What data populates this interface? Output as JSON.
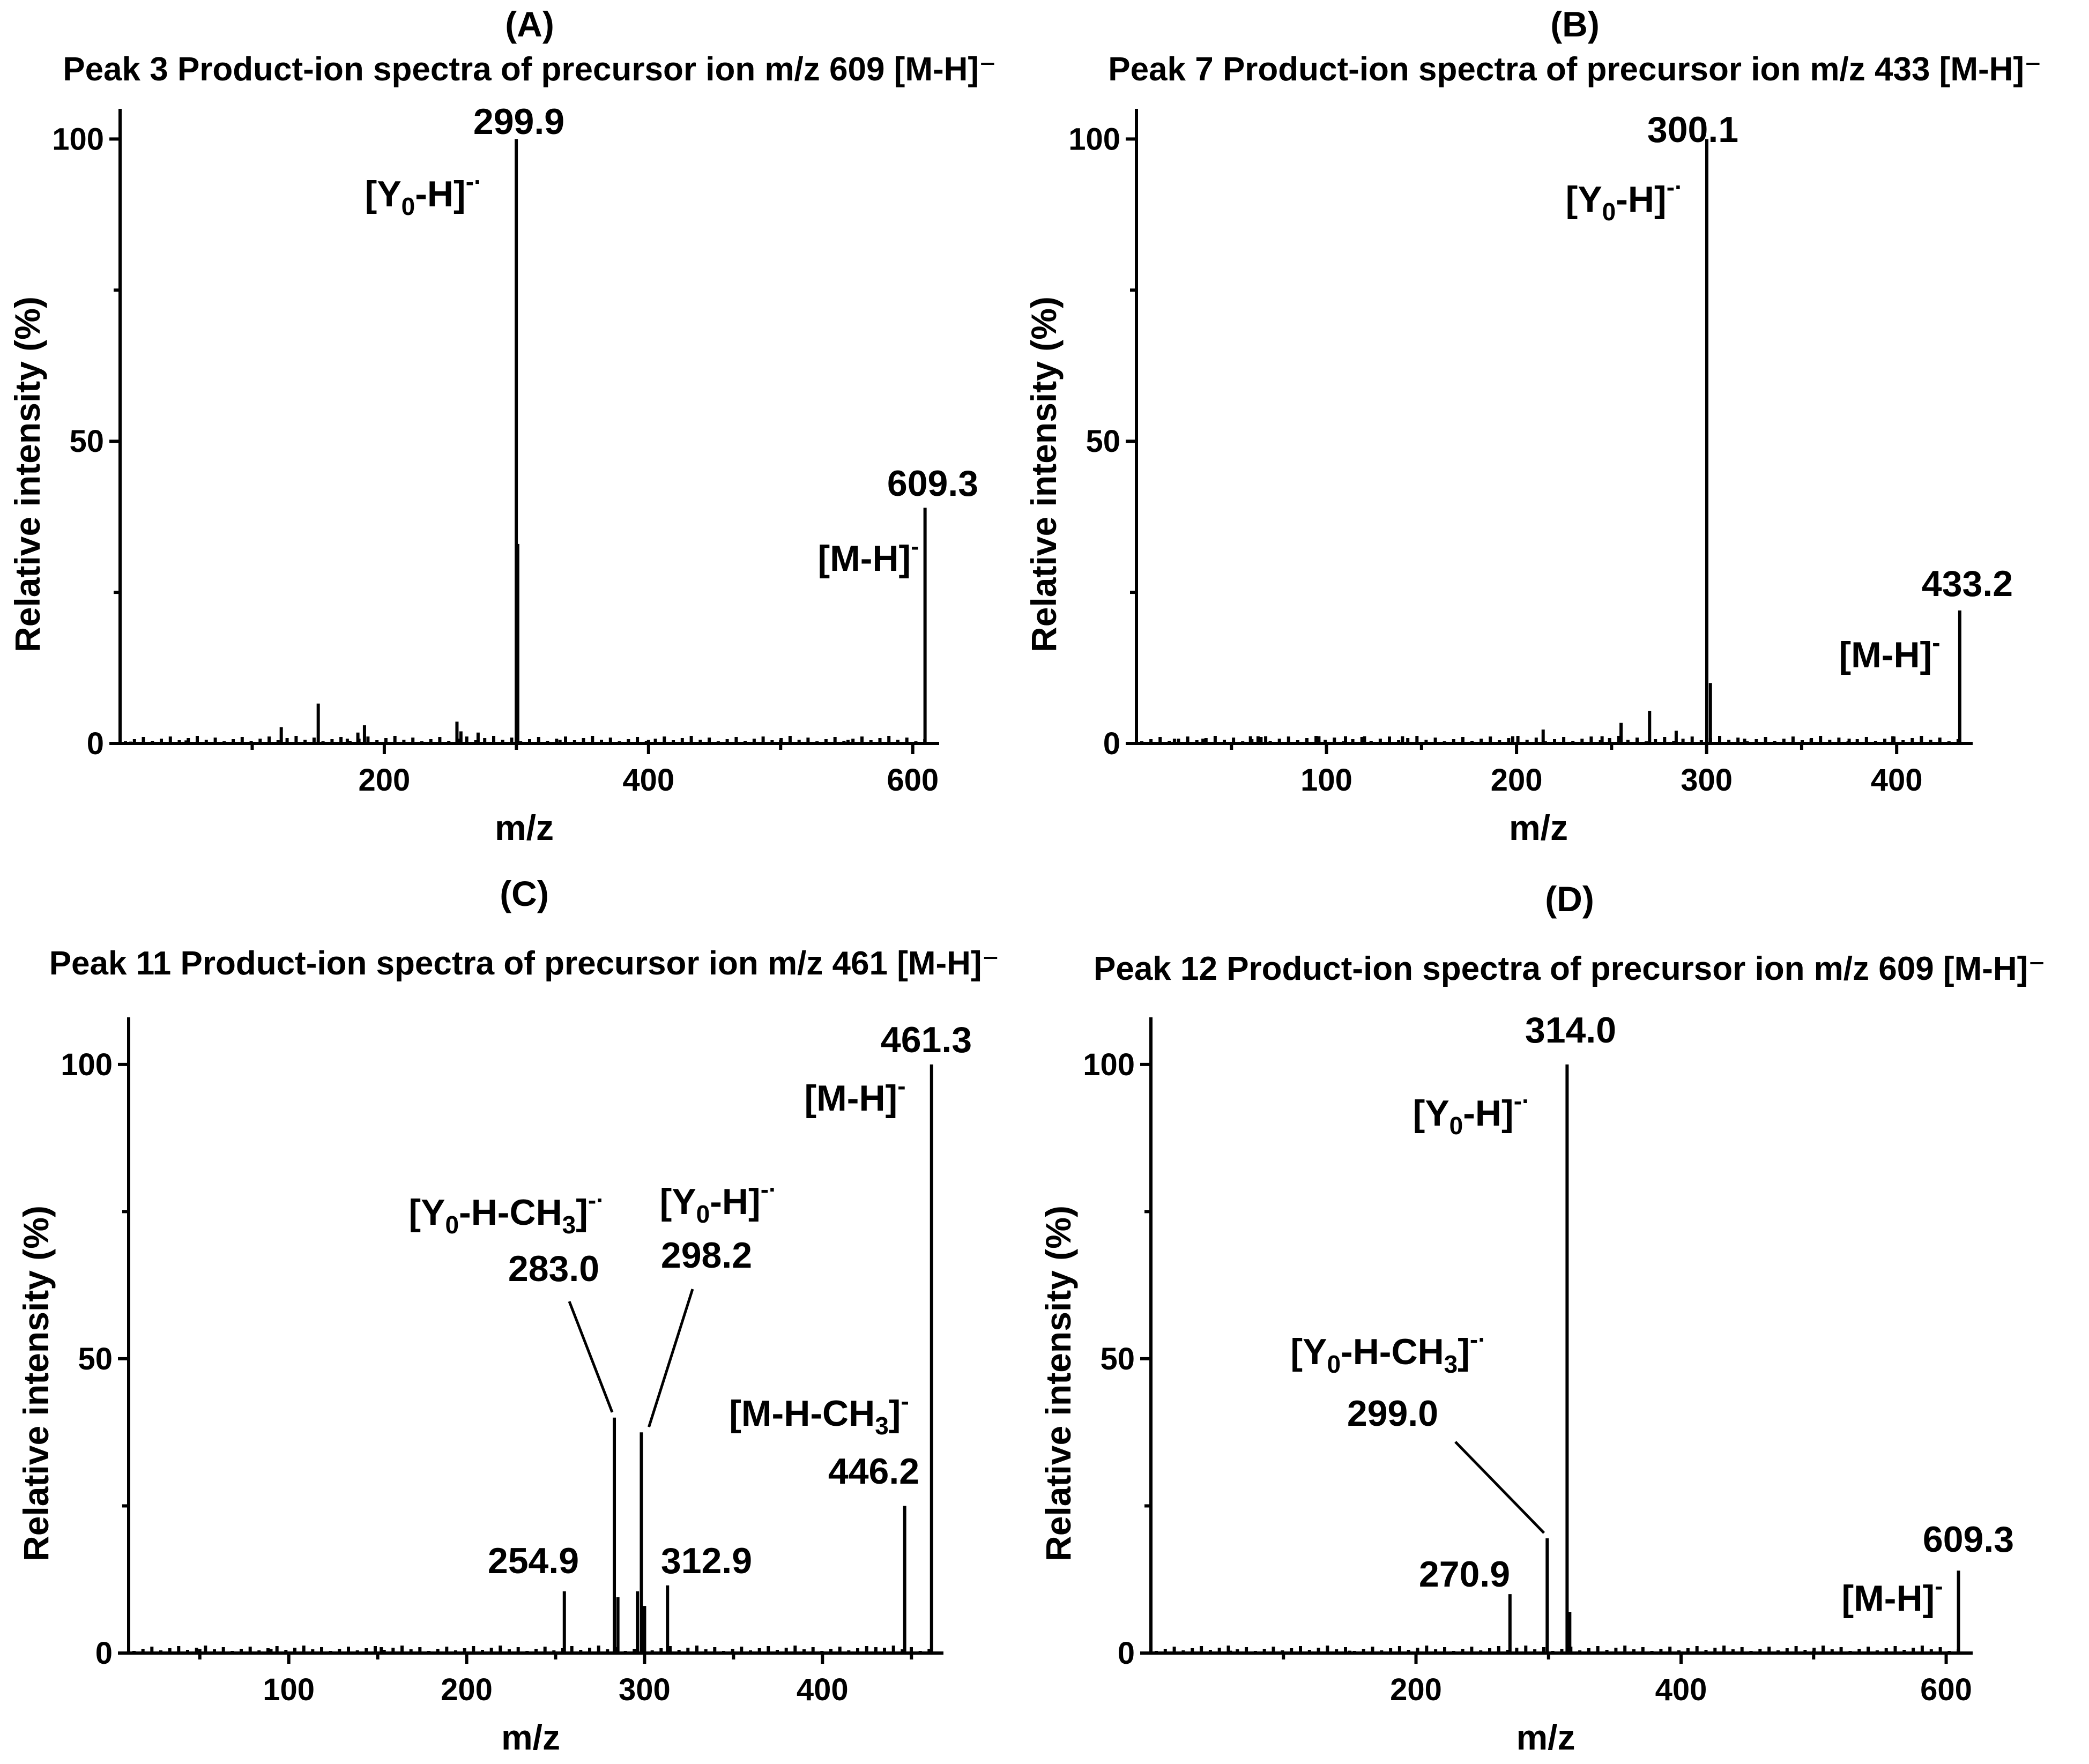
{
  "chart_data": [
    {
      "type": "bar",
      "panel": "(A)",
      "title": "Peak 3 Product-ion spectra of precursor ion m/z 609 [M-H]⁻",
      "xlabel": "m/z",
      "ylabel": "Relative intensity (%)",
      "xlim": [
        0,
        620
      ],
      "ylim": [
        0,
        105
      ],
      "xticks": [
        200,
        400,
        600
      ],
      "yticks": [
        0,
        50,
        100
      ],
      "grid": false,
      "x": [
        8,
        50,
        122,
        150,
        172,
        180,
        185,
        255,
        258,
        271,
        299.9,
        301,
        333,
        400,
        500,
        551,
        609.3
      ],
      "values": [
        0.3,
        0.5,
        2.7,
        6.6,
        0.8,
        1.8,
        3.0,
        3.6,
        2.0,
        1.8,
        100,
        33,
        0.6,
        0.6,
        0.6,
        0.6,
        39
      ],
      "labels": [
        {
          "text": "299.9",
          "x": 299.9
        },
        {
          "text": "609.3",
          "x": 609.3
        }
      ],
      "ion_labels": [
        {
          "text": "[Y₀-H]⁻·",
          "x": 299.9
        },
        {
          "text": "[M-H]⁻",
          "x": 609.3
        }
      ]
    },
    {
      "type": "bar",
      "panel": "(B)",
      "title": "Peak 7 Product-ion spectra of precursor ion m/z 433 [M-H]⁻",
      "xlabel": "m/z",
      "ylabel": "Relative intensity (%)",
      "xlim": [
        0,
        440
      ],
      "ylim": [
        0,
        105
      ],
      "xticks": [
        100,
        200,
        300,
        400
      ],
      "yticks": [
        0,
        50,
        100
      ],
      "grid": false,
      "x": [
        20,
        35,
        60,
        64,
        68,
        96,
        110,
        120,
        140,
        198,
        214,
        245,
        255,
        270,
        284,
        300.1,
        302,
        320,
        355,
        375,
        398,
        433.2
      ],
      "values": [
        0.8,
        0.8,
        1.2,
        1.2,
        1.2,
        1.2,
        1.2,
        1.2,
        1.2,
        1.2,
        2.3,
        1.2,
        3.4,
        5.4,
        2.1,
        100,
        10,
        0.8,
        0.8,
        0.8,
        1.2,
        22
      ],
      "labels": [
        {
          "text": "300.1",
          "x": 300.1
        },
        {
          "text": "433.2",
          "x": 433.2
        }
      ],
      "ion_labels": [
        {
          "text": "[Y₀-H]⁻·",
          "x": 300.1
        },
        {
          "text": "[M-H]⁻",
          "x": 433.2
        }
      ]
    },
    {
      "type": "bar",
      "panel": "(C)",
      "title": "Peak 11 Product-ion spectra of precursor ion m/z 461 [M-H]⁻",
      "xlabel": "m/z",
      "ylabel": "Relative intensity (%)",
      "xlim": [
        10,
        468
      ],
      "ylim": [
        0,
        108
      ],
      "xticks": [
        100,
        200,
        300,
        400
      ],
      "yticks": [
        0,
        50,
        100
      ],
      "grid": false,
      "x": [
        50,
        90,
        152,
        254.9,
        283.0,
        285,
        296,
        298.2,
        300,
        312.9,
        430,
        446.2,
        461.3
      ],
      "values": [
        0.7,
        0.7,
        1.0,
        10.5,
        40,
        9.5,
        10.5,
        37.5,
        8,
        11.5,
        1.0,
        25,
        100
      ],
      "labels": [
        {
          "text": "254.9",
          "x": 254.9
        },
        {
          "text": "283.0",
          "x": 283.0
        },
        {
          "text": "298.2",
          "x": 298.2
        },
        {
          "text": "312.9",
          "x": 312.9
        },
        {
          "text": "446.2",
          "x": 446.2
        },
        {
          "text": "461.3",
          "x": 461.3
        }
      ],
      "ion_labels": [
        {
          "text": "[Y₀-H-CH₃]⁻·",
          "x": 283.0
        },
        {
          "text": "[Y₀-H]⁻·",
          "x": 298.2
        },
        {
          "text": "[M-H-CH₃]⁻",
          "x": 446.2
        },
        {
          "text": "[M-H]⁻",
          "x": 461.3
        }
      ]
    },
    {
      "type": "bar",
      "panel": "(D)",
      "title": "Peak 12 Product-ion spectra of precursor ion m/z 609 [M-H]⁻",
      "xlabel": "m/z",
      "ylabel": "Relative intensity (%)",
      "xlim": [
        0,
        620
      ],
      "ylim": [
        0,
        108
      ],
      "xticks": [
        200,
        400,
        600
      ],
      "yticks": [
        0,
        50,
        100
      ],
      "grid": false,
      "x": [
        60,
        150,
        270.9,
        299.0,
        314.0,
        316,
        500,
        555,
        609.3
      ],
      "values": [
        0.4,
        0.4,
        10,
        19.5,
        100,
        7,
        0.4,
        0.4,
        14
      ],
      "labels": [
        {
          "text": "270.9",
          "x": 270.9
        },
        {
          "text": "299.0",
          "x": 299.0
        },
        {
          "text": "314.0",
          "x": 314.0
        },
        {
          "text": "609.3",
          "x": 609.3
        }
      ],
      "ion_labels": [
        {
          "text": "[Y₀-H-CH₃]⁻·",
          "x": 299.0
        },
        {
          "text": "[Y₀-H]⁻·",
          "x": 314.0
        },
        {
          "text": "[M-H]⁻",
          "x": 609.3
        }
      ]
    }
  ]
}
